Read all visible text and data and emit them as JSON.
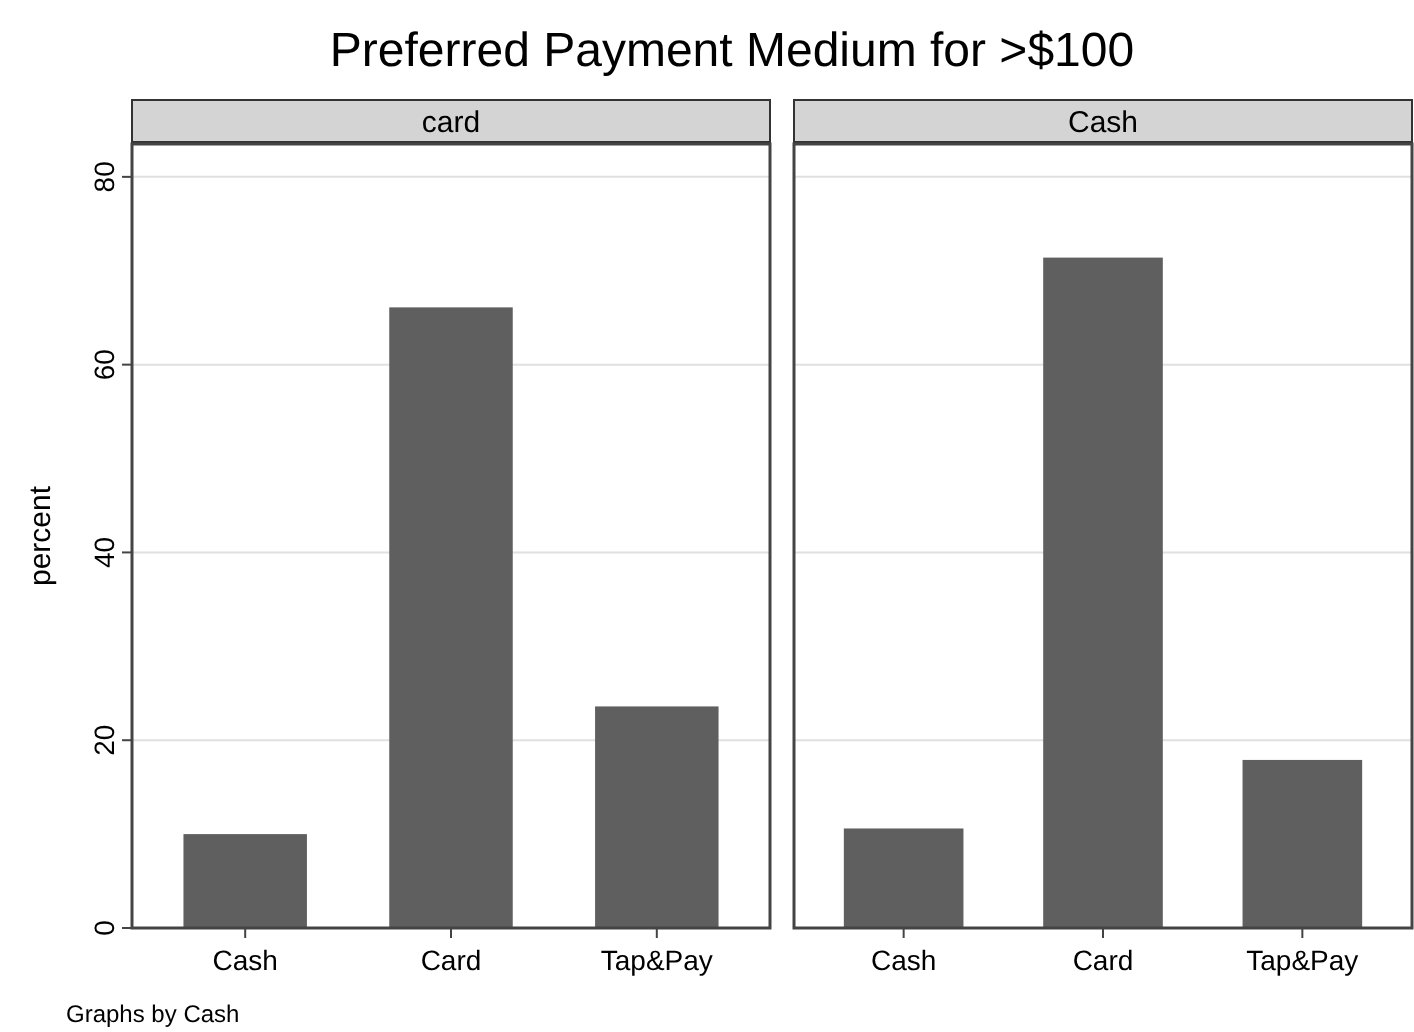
{
  "chart_data": [
    {
      "type": "bar",
      "title": "Preferred Payment Medium for >$100",
      "subtitle": "card",
      "ylabel": "percent",
      "categories": [
        "Cash",
        "Card",
        "Tap&Pay"
      ],
      "values": [
        10,
        66.1,
        23.6
      ],
      "color": "#5f5f5f",
      "ylim": [
        0,
        83.5
      ],
      "yticks": [
        0,
        20,
        40,
        60,
        80
      ],
      "grid": "y",
      "annotations": [
        "Graphs by Cash"
      ]
    },
    {
      "type": "bar",
      "subtitle": "Cash",
      "categories": [
        "Cash",
        "Card",
        "Tap&Pay"
      ],
      "values": [
        10.6,
        71.4,
        17.9
      ],
      "color": "#5f5f5f",
      "ylim": [
        0,
        83.5
      ],
      "yticks": [
        0,
        20,
        40,
        60,
        80
      ],
      "grid": "y",
      "tick_labels": "x"
    }
  ]
}
